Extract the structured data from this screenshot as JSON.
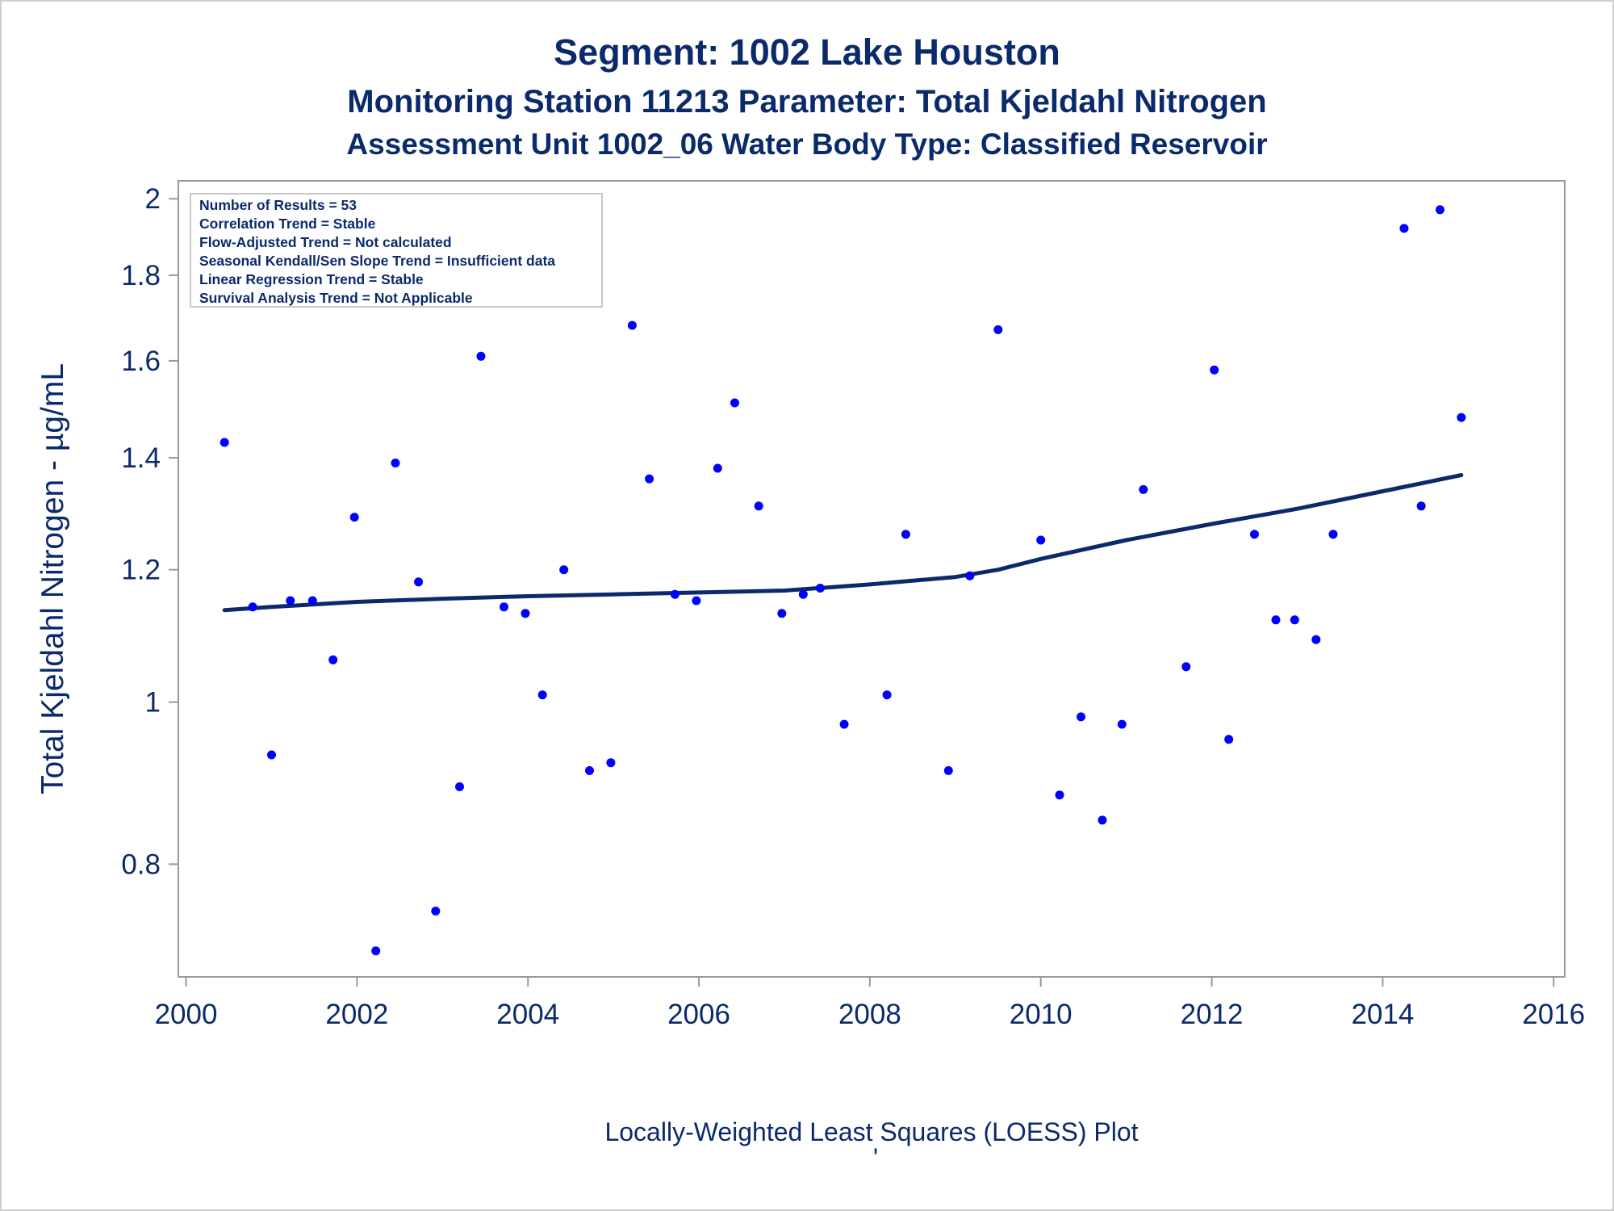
{
  "chart_data": {
    "type": "scatter",
    "title": "Segment: 1002  Lake Houston",
    "subtitle": "Monitoring Station 11213 Parameter: Total Kjeldahl Nitrogen",
    "subtitle2": "Assessment Unit 1002_06   Water Body Type: Classified Reservoir",
    "ylabel": "Total Kjeldahl Nitrogen -  µg/mL",
    "xlabel": "",
    "footnote": "Locally-Weighted Least Squares (LOESS) Plot",
    "footnote2": "'",
    "y_scale": "log",
    "xlim": [
      2000,
      2016
    ],
    "ylim": [
      0.7,
      2.0
    ],
    "x_ticks": [
      "2000",
      "2002",
      "2004",
      "2006",
      "2008",
      "2010",
      "2012",
      "2014",
      "2016"
    ],
    "y_ticks": [
      "0.8",
      "1",
      "1.2",
      "1.4",
      "1.6",
      "1.8",
      "2"
    ],
    "grid": false,
    "stats_box": [
      "Number of Results = 53",
      "Correlation Trend = Stable",
      "Flow-Adjusted Trend = Not calculated",
      "Seasonal Kendall/Sen Slope Trend = Insufficient data",
      "Linear Regression Trend = Stable",
      "Survival Analysis Trend = Not Applicable"
    ],
    "colors": {
      "points": "#0000ff",
      "loess": "#0b2a6b",
      "text": "#0b2a6b",
      "axis": "#999999"
    },
    "series": [
      {
        "values": [
          [
            2000.45,
            1.43
          ],
          [
            2000.78,
            1.14
          ],
          [
            2001.0,
            0.93
          ],
          [
            2001.22,
            1.15
          ],
          [
            2001.48,
            1.15
          ],
          [
            2001.72,
            1.06
          ],
          [
            2001.97,
            1.29
          ],
          [
            2002.22,
            0.71
          ],
          [
            2002.45,
            1.39
          ],
          [
            2002.72,
            1.18
          ],
          [
            2002.92,
            0.75
          ],
          [
            2003.2,
            0.89
          ],
          [
            2003.45,
            1.61
          ],
          [
            2003.72,
            1.14
          ],
          [
            2003.97,
            1.13
          ],
          [
            2004.17,
            1.01
          ],
          [
            2004.42,
            1.2
          ],
          [
            2004.72,
            0.91
          ],
          [
            2004.97,
            0.92
          ],
          [
            2005.22,
            1.68
          ],
          [
            2005.42,
            1.36
          ],
          [
            2005.72,
            1.16
          ],
          [
            2005.97,
            1.15
          ],
          [
            2006.22,
            1.38
          ],
          [
            2006.42,
            1.51
          ],
          [
            2006.7,
            1.31
          ],
          [
            2006.97,
            1.13
          ],
          [
            2007.22,
            1.16
          ],
          [
            2007.42,
            1.17
          ],
          [
            2007.7,
            0.97
          ],
          [
            2008.2,
            1.01
          ],
          [
            2008.42,
            1.26
          ],
          [
            2008.92,
            0.91
          ],
          [
            2009.17,
            1.19
          ],
          [
            2009.5,
            1.67
          ],
          [
            2010.0,
            1.25
          ],
          [
            2010.22,
            0.88
          ],
          [
            2010.47,
            0.98
          ],
          [
            2010.72,
            0.85
          ],
          [
            2010.95,
            0.97
          ],
          [
            2011.2,
            1.34
          ],
          [
            2011.7,
            1.05
          ],
          [
            2012.03,
            1.58
          ],
          [
            2012.2,
            0.95
          ],
          [
            2012.5,
            1.26
          ],
          [
            2012.75,
            1.12
          ],
          [
            2012.97,
            1.12
          ],
          [
            2013.22,
            1.09
          ],
          [
            2013.42,
            1.26
          ],
          [
            2014.25,
            1.92
          ],
          [
            2014.45,
            1.31
          ],
          [
            2014.67,
            1.97
          ],
          [
            2014.92,
            1.48
          ]
        ]
      },
      {
        "type": "line",
        "values": [
          [
            2000.45,
            1.135
          ],
          [
            2001.0,
            1.14
          ],
          [
            2002.0,
            1.148
          ],
          [
            2003.0,
            1.153
          ],
          [
            2004.0,
            1.157
          ],
          [
            2005.0,
            1.16
          ],
          [
            2006.0,
            1.163
          ],
          [
            2007.0,
            1.166
          ],
          [
            2008.0,
            1.176
          ],
          [
            2009.0,
            1.188
          ],
          [
            2009.5,
            1.2
          ],
          [
            2010.0,
            1.218
          ],
          [
            2011.0,
            1.25
          ],
          [
            2012.0,
            1.278
          ],
          [
            2013.0,
            1.305
          ],
          [
            2014.0,
            1.337
          ],
          [
            2014.92,
            1.367
          ]
        ]
      }
    ]
  }
}
